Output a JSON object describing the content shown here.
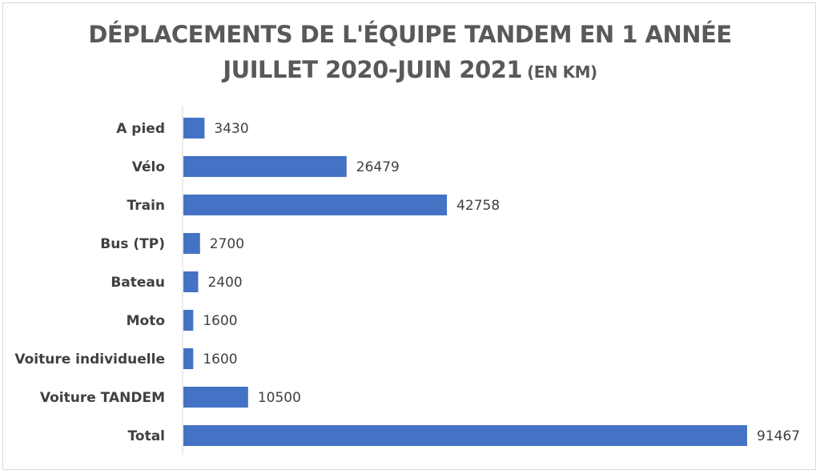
{
  "chart_data": {
    "type": "bar",
    "orientation": "horizontal",
    "title_line1": "DÉPLACEMENTS DE L'ÉQUIPE TANDEM EN 1 ANNÉE",
    "title_line2": "JUILLET 2020-JUIN 2021",
    "title_unit": "(EN KM)",
    "categories": [
      "A pied",
      "Vélo",
      "Train",
      "Bus (TP)",
      "Bateau",
      "Moto",
      "Voiture individuelle",
      "Voiture TANDEM",
      "Total"
    ],
    "values": [
      3430,
      26479,
      42758,
      2700,
      2400,
      1600,
      1600,
      10500,
      91467
    ],
    "data_labels": [
      "3430",
      "26479",
      "42758",
      "2700",
      "2400",
      "1600",
      "1600",
      "10500",
      "91467"
    ],
    "xlim": [
      0,
      91467
    ],
    "grid": false,
    "legend": "none",
    "bar_color": "#4472c4"
  }
}
